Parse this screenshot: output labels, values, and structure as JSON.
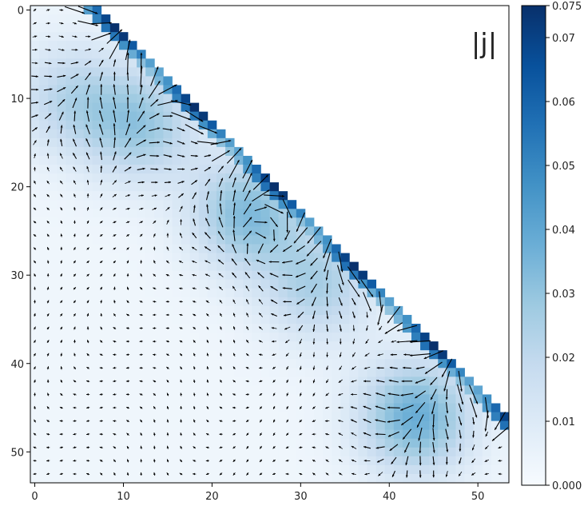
{
  "chart_data": {
    "type": "heatmap",
    "title": "",
    "xlabel": "",
    "ylabel": "",
    "panel_label": "|j|",
    "overlay": "quiver (current density vector field)",
    "grid": false,
    "colormap": "Blues",
    "x_ticks": [
      "0",
      "10",
      "20",
      "30",
      "40",
      "50"
    ],
    "y_ticks": [
      "0",
      "10",
      "20",
      "30",
      "40",
      "50"
    ],
    "xlim": [
      -0.5,
      53.5
    ],
    "ylim": [
      53.5,
      -0.5
    ],
    "lattice_size": 54,
    "colorbar": {
      "range": [
        0.0,
        0.075
      ],
      "ticks": [
        "0.000",
        "0.01",
        "0.02",
        "0.03",
        "0.04",
        "0.05",
        "0.06",
        "0.07",
        "0.075"
      ],
      "placement": "right"
    },
    "features": {
      "diagonal_edge_value_range": [
        0.04,
        0.075
      ],
      "interior_hotspots": [
        {
          "x": 12,
          "y": 13,
          "value": 0.025
        },
        {
          "x": 24,
          "y": 23,
          "value": 0.03
        },
        {
          "x": 32,
          "y": 31,
          "value": 0.022
        },
        {
          "x": 43,
          "y": 46,
          "value": 0.035
        },
        {
          "x": 4,
          "y": 10,
          "value": 0.018
        }
      ]
    }
  }
}
